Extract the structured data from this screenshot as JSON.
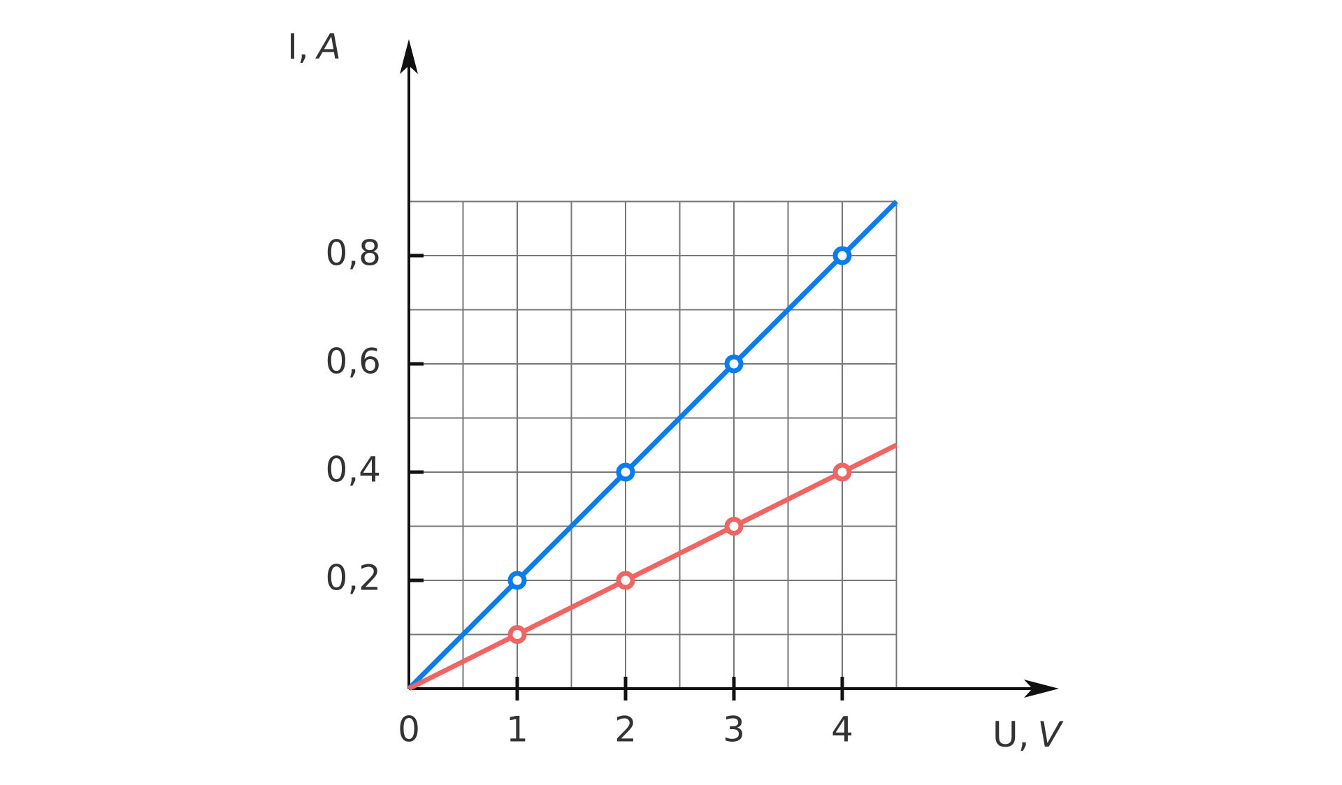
{
  "chart_data": {
    "type": "line",
    "xlabel": "U,",
    "xlabel_unit": "V",
    "ylabel": "I,",
    "ylabel_unit": "A",
    "x": [
      0,
      1,
      2,
      3,
      4,
      4.5
    ],
    "series": [
      {
        "color": "#0a7cf0",
        "values": [
          0,
          0.2,
          0.4,
          0.6,
          0.8,
          0.9
        ]
      },
      {
        "color": "#f06464",
        "values": [
          0,
          0.1,
          0.2,
          0.3,
          0.4,
          0.45
        ]
      }
    ],
    "xlim": [
      0,
      6
    ],
    "ylim": [
      0,
      1.2
    ],
    "xticks": [
      0,
      1,
      2,
      3,
      4
    ],
    "yticks": [
      {
        "value": 0.2,
        "label": "0,2"
      },
      {
        "value": 0.4,
        "label": "0,4"
      },
      {
        "value": 0.6,
        "label": "0,6"
      },
      {
        "value": 0.8,
        "label": "0,8"
      }
    ],
    "grid": true
  }
}
